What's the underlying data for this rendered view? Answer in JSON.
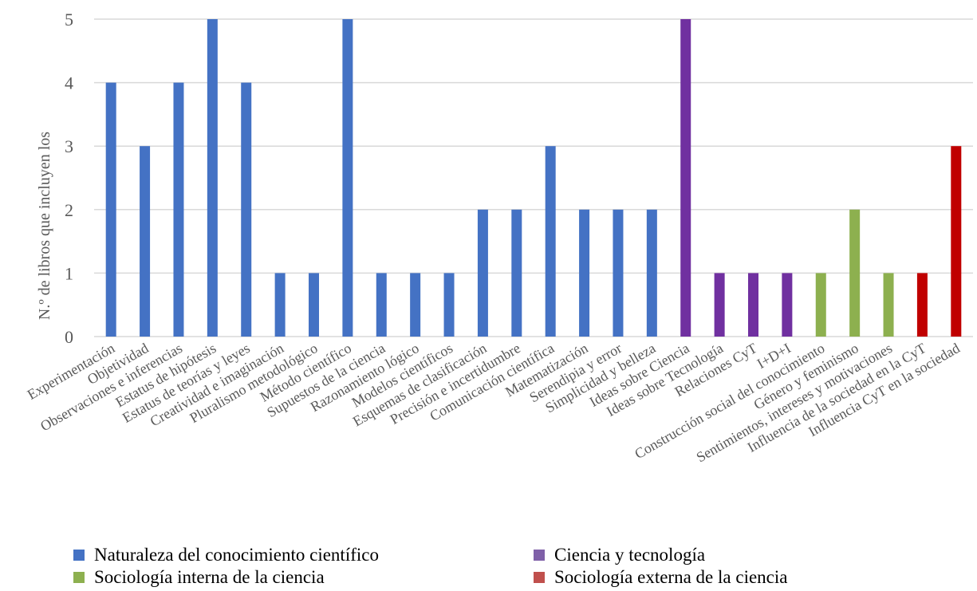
{
  "chart_data": {
    "type": "bar",
    "title": "",
    "xlabel": "",
    "ylabel": "N.º de libros que incluyen los",
    "ylim": [
      0,
      5
    ],
    "yticks": [
      0,
      1,
      2,
      3,
      4,
      5
    ],
    "grid": true,
    "legend_position": "bottom",
    "categories": [
      "Experimentación",
      "Objetividad",
      "Observaciones e inferencias",
      "Estatus de hipótesis",
      "Estatus de teorías y leyes",
      "Creatividad e imaginación",
      "Pluralismo metodológico",
      "Método científico",
      "Supuestos de la ciencia",
      "Razonamiento lógico",
      "Modelos científicos",
      "Esquemas de clasificación",
      "Precisión e incertidumbre",
      "Comunicación científica",
      "Matematización",
      "Serendipia y error",
      "Simplicidad  y belleza",
      "Ideas sobre Ciencia",
      "Ideas sobre Tecnología",
      "Relaciones CyT",
      "I+D+I",
      "Construcción social del conocimiento",
      "Género y feminismo",
      "Sentimientos, intereses y motivaciones",
      "Influencia de la sociedad en la CyT",
      "Influencia CyT en la sociedad"
    ],
    "values": [
      4,
      3,
      4,
      5,
      4,
      1,
      1,
      5,
      1,
      1,
      1,
      2,
      2,
      3,
      2,
      2,
      2,
      5,
      1,
      1,
      1,
      1,
      2,
      1,
      1,
      3
    ],
    "bar_groups": [
      0,
      0,
      0,
      0,
      0,
      0,
      0,
      0,
      0,
      0,
      0,
      0,
      0,
      0,
      0,
      0,
      0,
      1,
      1,
      1,
      1,
      2,
      2,
      2,
      3,
      3
    ],
    "legend": [
      {
        "name": "Naturaleza del conocimiento científico",
        "color": "#4472C4"
      },
      {
        "name": "Ciencia y tecnología",
        "color": "#7030A0"
      },
      {
        "name": "Sociología interna de la ciencia",
        "color": "#8DB04F"
      },
      {
        "name": "Sociología externa de la ciencia",
        "color": "#C00000"
      }
    ],
    "legend_swatch_colors": [
      "#4472C4",
      "#7F60A8",
      "#8DB04F",
      "#C0504D"
    ]
  }
}
